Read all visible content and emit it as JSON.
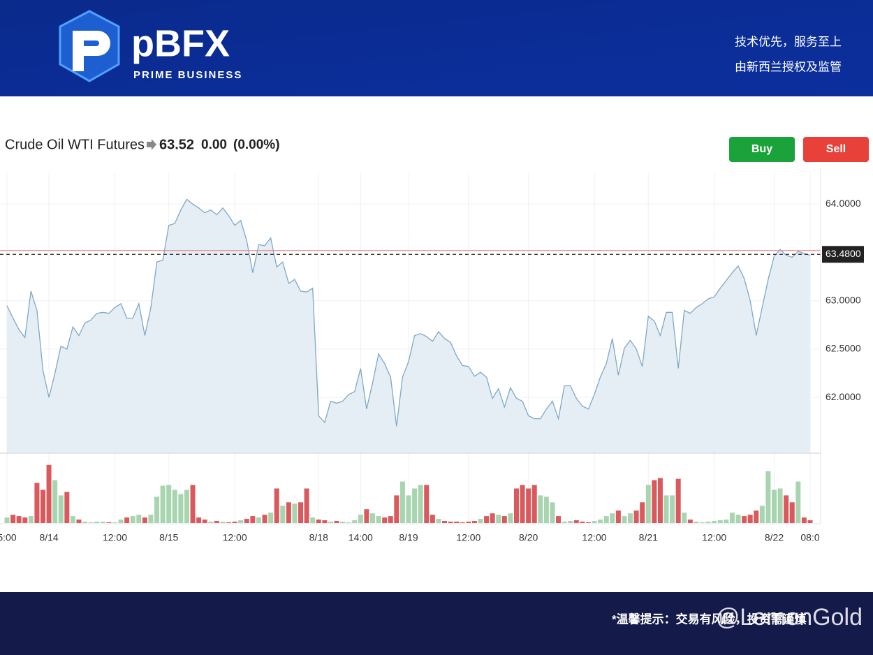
{
  "header": {
    "brand": "pBFX",
    "tagline": "PRIME BUSINESS",
    "slogan_1": "技术优先，服务至上",
    "slogan_2": "由新西兰授权及监管"
  },
  "instrument": {
    "name": "Crude Oil WTI Futures",
    "price": {
      "value": 63.52,
      "label": "63.52"
    },
    "change": "0.00",
    "change_pct": "(0.00%)"
  },
  "buttons": {
    "buy": "Buy",
    "sell": "Sell"
  },
  "chart_data": {
    "type": "line",
    "categories": [
      "5:00",
      null,
      null,
      null,
      null,
      null,
      null,
      "8/14",
      null,
      null,
      null,
      null,
      null,
      null,
      null,
      null,
      null,
      null,
      "12:00",
      null,
      null,
      null,
      null,
      null,
      null,
      null,
      null,
      "8/15",
      null,
      null,
      null,
      null,
      null,
      null,
      null,
      null,
      null,
      null,
      "12:00",
      null,
      null,
      null,
      null,
      null,
      null,
      null,
      null,
      null,
      null,
      null,
      null,
      null,
      "8/18",
      null,
      null,
      null,
      null,
      null,
      null,
      "14:00",
      null,
      null,
      null,
      null,
      null,
      null,
      null,
      "8/19",
      null,
      null,
      null,
      null,
      null,
      null,
      null,
      null,
      null,
      "12:00",
      null,
      null,
      null,
      null,
      null,
      null,
      null,
      null,
      null,
      "8/20",
      null,
      null,
      null,
      null,
      null,
      null,
      null,
      null,
      null,
      null,
      "12:00",
      null,
      null,
      null,
      null,
      null,
      null,
      null,
      null,
      "8/21",
      null,
      null,
      null,
      null,
      null,
      null,
      null,
      null,
      null,
      null,
      "12:00",
      null,
      null,
      null,
      null,
      null,
      null,
      null,
      null,
      null,
      "8/22",
      null,
      null,
      null,
      null,
      null,
      "08:0"
    ],
    "series": [
      {
        "color": "#7fa8c4",
        "fill": "#e6eef5",
        "values": [
          62.95,
          62.82,
          62.7,
          62.62,
          63.1,
          62.9,
          62.28,
          62.0,
          62.25,
          62.53,
          62.5,
          62.73,
          62.64,
          62.77,
          62.8,
          62.87,
          62.88,
          62.87,
          62.93,
          62.97,
          62.82,
          62.82,
          62.97,
          62.64,
          62.93,
          63.4,
          63.42,
          63.78,
          63.8,
          63.94,
          64.05,
          64.0,
          63.96,
          63.91,
          63.94,
          63.89,
          63.96,
          63.88,
          63.78,
          63.83,
          63.62,
          63.29,
          63.58,
          63.57,
          63.65,
          63.35,
          63.4,
          63.18,
          63.22,
          63.1,
          63.09,
          63.13,
          61.81,
          61.74,
          61.96,
          61.94,
          61.96,
          62.03,
          62.06,
          62.3,
          61.88,
          62.15,
          62.45,
          62.35,
          62.21,
          61.7,
          62.21,
          62.37,
          62.64,
          62.66,
          62.63,
          62.58,
          62.68,
          62.61,
          62.57,
          62.43,
          62.33,
          62.32,
          62.22,
          62.26,
          62.21,
          61.99,
          62.09,
          61.9,
          62.1,
          61.99,
          61.96,
          61.81,
          61.78,
          61.78,
          61.88,
          61.96,
          61.78,
          62.12,
          62.12,
          61.99,
          61.91,
          61.88,
          62.03,
          62.21,
          62.35,
          62.61,
          62.23,
          62.51,
          62.59,
          62.5,
          62.32,
          62.84,
          62.79,
          62.64,
          62.88,
          62.88,
          62.3,
          62.9,
          62.87,
          62.93,
          62.97,
          63.02,
          63.04,
          63.13,
          63.21,
          63.29,
          63.36,
          63.23,
          63.0,
          62.64,
          62.93,
          63.22,
          63.46,
          63.53,
          63.47,
          63.45,
          63.51,
          63.49,
          63.47
        ]
      }
    ],
    "ylim": [
      61.43,
      64.32
    ],
    "yticks": [
      {
        "value": 64,
        "label": "64.0000"
      },
      {
        "value": 63,
        "label": "63.0000"
      },
      {
        "value": 62.5,
        "label": "62.5000"
      },
      {
        "value": 62,
        "label": "62.0000"
      }
    ],
    "grid": true,
    "price_line": {
      "value": 63.48,
      "label": "63.4800",
      "color": "#222222"
    },
    "last_line_color": "#e88a8a",
    "volume": {
      "lim": [
        0,
        100
      ],
      "up_color": "#a8d5b0",
      "down_color": "#d9595d",
      "values": [
        8,
        12,
        10,
        8,
        10,
        58,
        48,
        84,
        62,
        40,
        45,
        10,
        5,
        2,
        1,
        2,
        2,
        1,
        1,
        5,
        8,
        10,
        12,
        8,
        12,
        38,
        54,
        55,
        48,
        42,
        48,
        55,
        8,
        5,
        2,
        3,
        2,
        1,
        2,
        4,
        6,
        10,
        8,
        12,
        15,
        50,
        25,
        30,
        28,
        30,
        50,
        8,
        5,
        4,
        2,
        3,
        2,
        1,
        4,
        12,
        20,
        14,
        10,
        8,
        10,
        40,
        60,
        40,
        50,
        55,
        55,
        12,
        6,
        3,
        2,
        2,
        1,
        2,
        3,
        6,
        10,
        14,
        12,
        10,
        14,
        50,
        55,
        50,
        55,
        40,
        38,
        30,
        10,
        2,
        3,
        4,
        2,
        1,
        3,
        5,
        10,
        14,
        18,
        10,
        14,
        18,
        30,
        55,
        62,
        65,
        40,
        40,
        64,
        15,
        5,
        2,
        1,
        2,
        3,
        4,
        5,
        15,
        12,
        10,
        12,
        18,
        25,
        75,
        48,
        50,
        40,
        30,
        60,
        8,
        4
      ]
    }
  },
  "footer": {
    "notice": "*温馨提示：交易有风险，投资需谨慎",
    "watermark": "@LemonGold"
  }
}
